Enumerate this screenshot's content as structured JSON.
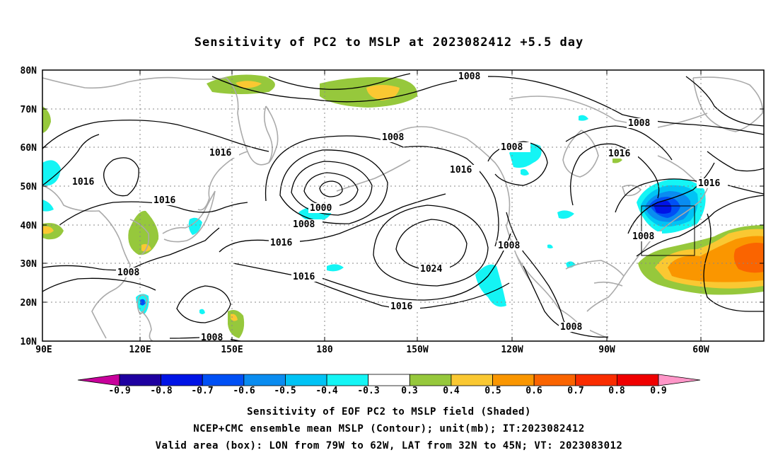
{
  "title": "Sensitivity of PC2 to MSLP at 2023082412 +5.5 day",
  "lat_labels": [
    "80N",
    "70N",
    "60N",
    "50N",
    "40N",
    "30N",
    "20N",
    "10N"
  ],
  "lon_labels": [
    "90E",
    "120E",
    "150E",
    "180",
    "150W",
    "120W",
    "90W",
    "60W"
  ],
  "contour_labels": {
    "c1008_top": "1008",
    "c1008_aleutian": "1008",
    "c1008_canada": "1008",
    "c1008_greenland": "1008",
    "c1016_nwpac": "1016",
    "c1016_west": "1016",
    "c1016_japan": "1016",
    "c1016_center": "1016",
    "c1016_npac": "1016",
    "c1016_south": "1016",
    "c1016_seasia": "1016",
    "c1016_hudson": "1016",
    "c1016_labrador": "1016",
    "c1008_low": "1008",
    "c1000_low": "1000",
    "c1024_high": "1024",
    "c1008_calif": "1008",
    "c1008_box": "1008",
    "c1008_sw": "1008",
    "c1008_bottom": "1008",
    "c1008_mexico": "1008"
  },
  "colorbar": {
    "labels": [
      "-0.9",
      "-0.8",
      "-0.7",
      "-0.6",
      "-0.5",
      "-0.4",
      "-0.3",
      "0.3",
      "0.4",
      "0.5",
      "0.6",
      "0.7",
      "0.8",
      "0.9"
    ],
    "colors": [
      "#1e00a0",
      "#0014e6",
      "#0050f5",
      "#0a8cf0",
      "#00c3f5",
      "#14f5f5",
      "#ffffff",
      "#96c83c",
      "#fac832",
      "#fa9600",
      "#fa6400",
      "#fa2d00",
      "#f00000"
    ],
    "low_end_color": "#c8009b",
    "high_end_color": "#ff96c8"
  },
  "captions": [
    "Sensitivity of EOF PC2 to MSLP field (Shaded)",
    "NCEP+CMC ensemble mean MSLP (Contour); unit(mb); IT:2023082412",
    "Valid area (box): LON from 79W to 62W, LAT from 32N to 45N; VT: 2023083012"
  ]
}
